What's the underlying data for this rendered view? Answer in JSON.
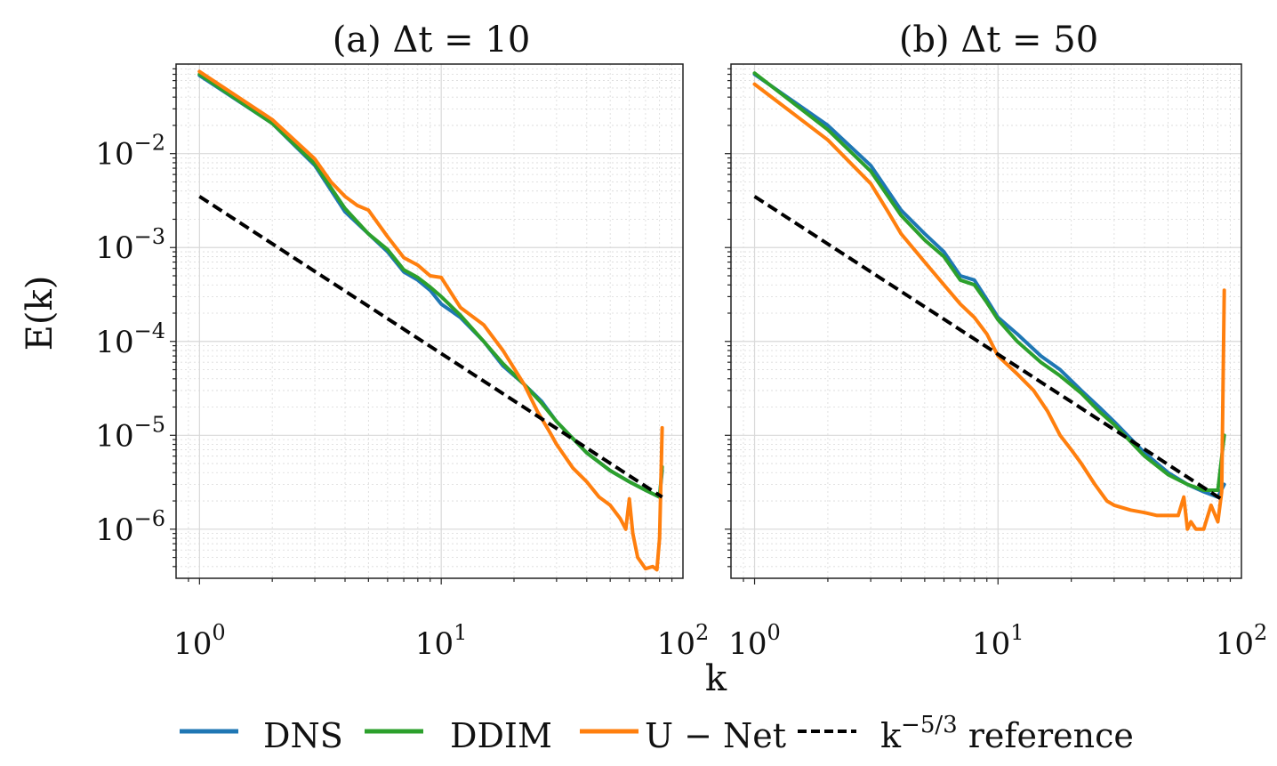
{
  "figure": {
    "xlabel": "k",
    "ylabel": "E(k)",
    "legend": {
      "placement": "bottom",
      "entries": [
        {
          "label": "DNS",
          "color": "#1f77b4",
          "style": "solid"
        },
        {
          "label": "DDIM",
          "color": "#2ca02c",
          "style": "solid"
        },
        {
          "label": "U − Net",
          "color": "#ff7f0e",
          "style": "solid"
        },
        {
          "label": "k^{−5/3} reference",
          "color": "#000000",
          "style": "dashed"
        }
      ]
    }
  },
  "chart_data": [
    {
      "type": "line",
      "title": "(a) Δt  =  10",
      "xscale": "log",
      "yscale": "log",
      "xlim": [
        0.8,
        100
      ],
      "ylim": [
        3e-07,
        0.09
      ],
      "xticks": [
        {
          "value": 1,
          "base": "10",
          "exp": "0"
        },
        {
          "value": 10,
          "base": "10",
          "exp": "1"
        },
        {
          "value": 100,
          "base": "10",
          "exp": "2"
        }
      ],
      "yticks": [
        {
          "value": 1e-06,
          "base": "10",
          "exp": "−6"
        },
        {
          "value": 1e-05,
          "base": "10",
          "exp": "−5"
        },
        {
          "value": 0.0001,
          "base": "10",
          "exp": "−4"
        },
        {
          "value": 0.001,
          "base": "10",
          "exp": "−3"
        },
        {
          "value": 0.01,
          "base": "10",
          "exp": "−2"
        }
      ],
      "grid": true,
      "series": [
        {
          "name": "DNS",
          "color": "#1f77b4",
          "style": "solid",
          "x": [
            1,
            2,
            3,
            4,
            5,
            6,
            7,
            8,
            9,
            10,
            12,
            15,
            18,
            22,
            26,
            30,
            40,
            50,
            60,
            70,
            80,
            82
          ],
          "y": [
            0.068,
            0.021,
            0.0075,
            0.0024,
            0.0014,
            0.0009,
            0.00055,
            0.00045,
            0.00035,
            0.00025,
            0.00018,
            0.0001,
            5.5e-05,
            3.5e-05,
            2.3e-05,
            1.4e-05,
            6.5e-06,
            4.2e-06,
            3.2e-06,
            2.6e-06,
            2.2e-06,
            4.2e-06
          ]
        },
        {
          "name": "DDIM",
          "color": "#2ca02c",
          "style": "solid",
          "x": [
            1,
            2,
            3,
            4,
            5,
            6,
            7,
            8,
            9,
            10,
            12,
            15,
            18,
            22,
            26,
            30,
            40,
            50,
            60,
            70,
            80,
            82
          ],
          "y": [
            0.07,
            0.021,
            0.0078,
            0.0026,
            0.0014,
            0.00095,
            0.00058,
            0.00048,
            0.00038,
            0.0003,
            0.00019,
            0.0001,
            5.8e-05,
            3.5e-05,
            2.2e-05,
            1.4e-05,
            6.5e-06,
            4.2e-06,
            3.2e-06,
            2.6e-06,
            2.2e-06,
            4.6e-06
          ]
        },
        {
          "name": "U − Net",
          "color": "#ff7f0e",
          "style": "solid",
          "x": [
            1,
            2,
            3,
            3.5,
            4,
            4.5,
            5,
            6,
            7,
            8,
            9,
            10,
            12,
            15,
            18,
            22,
            25,
            28,
            30,
            35,
            40,
            45,
            50,
            55,
            58,
            60,
            62,
            65,
            70,
            75,
            78,
            80,
            82
          ],
          "y": [
            0.075,
            0.023,
            0.0088,
            0.005,
            0.0035,
            0.0028,
            0.0025,
            0.0013,
            0.00078,
            0.00065,
            0.0005,
            0.00048,
            0.00023,
            0.00015,
            8e-05,
            3.5e-05,
            1.8e-05,
            1.1e-05,
            8e-06,
            4.5e-06,
            3.2e-06,
            2.2e-06,
            1.8e-06,
            1.3e-06,
            1e-06,
            2.1e-06,
            9e-07,
            5e-07,
            3.8e-07,
            4e-07,
            3.7e-07,
            8e-07,
            1.2e-05
          ]
        },
        {
          "name": "k^{−5/3} reference",
          "color": "#000000",
          "style": "dashed",
          "x": [
            1,
            82
          ],
          "y": [
            0.0035,
            2.2e-06
          ]
        }
      ]
    },
    {
      "type": "line",
      "title": "(b) Δt  =  50",
      "xscale": "log",
      "yscale": "log",
      "xlim": [
        0.8,
        100
      ],
      "ylim": [
        3e-07,
        0.09
      ],
      "xticks": [
        {
          "value": 1,
          "base": "10",
          "exp": "0"
        },
        {
          "value": 10,
          "base": "10",
          "exp": "1"
        },
        {
          "value": 100,
          "base": "10",
          "exp": "2"
        }
      ],
      "yticks": [],
      "grid": true,
      "series": [
        {
          "name": "DNS",
          "color": "#1f77b4",
          "style": "solid",
          "x": [
            1,
            2,
            3,
            4,
            5,
            6,
            7,
            8,
            9,
            10,
            12,
            15,
            18,
            22,
            26,
            30,
            40,
            50,
            60,
            70,
            80,
            85
          ],
          "y": [
            0.07,
            0.02,
            0.0075,
            0.0025,
            0.0014,
            0.0009,
            0.0005,
            0.00045,
            0.00028,
            0.00018,
            0.00012,
            7e-05,
            5e-05,
            3e-05,
            2e-05,
            1.4e-05,
            6.5e-06,
            4e-06,
            3e-06,
            2.5e-06,
            2.2e-06,
            3e-06
          ]
        },
        {
          "name": "DDIM",
          "color": "#2ca02c",
          "style": "solid",
          "x": [
            1,
            2,
            3,
            4,
            5,
            6,
            7,
            8,
            9,
            10,
            12,
            15,
            18,
            22,
            26,
            30,
            40,
            50,
            60,
            70,
            80,
            85
          ],
          "y": [
            0.072,
            0.018,
            0.0065,
            0.0022,
            0.0012,
            0.0008,
            0.00045,
            0.0004,
            0.00026,
            0.00017,
            0.0001,
            6e-05,
            4.3e-05,
            2.8e-05,
            1.8e-05,
            1.3e-05,
            6e-06,
            3.8e-06,
            3e-06,
            2.6e-06,
            2.6e-06,
            1e-05
          ]
        },
        {
          "name": "U − Net",
          "color": "#ff7f0e",
          "style": "solid",
          "x": [
            1,
            2,
            3,
            3.5,
            4,
            5,
            6,
            7,
            8,
            9,
            10,
            12,
            14,
            16,
            18,
            20,
            22,
            25,
            28,
            30,
            35,
            40,
            45,
            50,
            55,
            58,
            60,
            62,
            65,
            70,
            75,
            80,
            83,
            85
          ],
          "y": [
            0.055,
            0.014,
            0.0048,
            0.0025,
            0.0014,
            0.0007,
            0.0004,
            0.00025,
            0.00018,
            0.00012,
            7e-05,
            4.5e-05,
            3e-05,
            1.8e-05,
            1e-05,
            7e-06,
            5e-06,
            3e-06,
            2e-06,
            1.8e-06,
            1.6e-06,
            1.5e-06,
            1.4e-06,
            1.4e-06,
            1.4e-06,
            2.2e-06,
            1e-06,
            1.2e-06,
            1e-06,
            1e-06,
            1.8e-06,
            1.2e-06,
            2.5e-06,
            0.00035
          ]
        },
        {
          "name": "k^{−5/3} reference",
          "color": "#000000",
          "style": "dashed",
          "x": [
            1,
            85
          ],
          "y": [
            0.0035,
            2e-06
          ]
        }
      ]
    }
  ]
}
